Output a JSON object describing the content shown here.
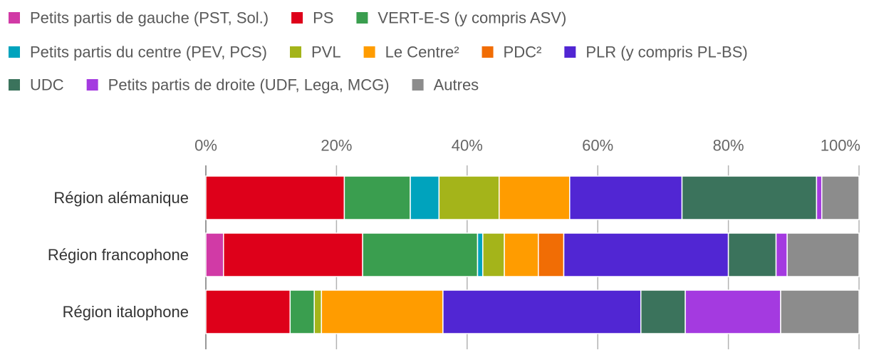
{
  "chart_data": {
    "type": "bar",
    "orientation": "horizontal",
    "stacked": true,
    "normalized": true,
    "xlim": [
      0,
      100
    ],
    "ticks": [
      0,
      20,
      40,
      60,
      80,
      100
    ],
    "tick_labels": [
      "0%",
      "20%",
      "40%",
      "60%",
      "80%",
      "100%"
    ],
    "categories": [
      "Région alémanique",
      "Région francophone",
      "Région italophone"
    ],
    "series": [
      {
        "name": "Petits partis de gauche (PST, Sol.)",
        "color": "#d13aa6",
        "values": [
          0,
          2.7,
          0
        ]
      },
      {
        "name": "PS",
        "color": "#de001a",
        "values": [
          21.2,
          21.3,
          12.9
        ]
      },
      {
        "name": "VERT-E-S (y compris ASV)",
        "color": "#3a9e4f",
        "values": [
          10.1,
          17.6,
          3.7
        ]
      },
      {
        "name": "Petits partis du centre (PEV, PCS)",
        "color": "#00a3bd",
        "values": [
          4.4,
          0.8,
          0
        ]
      },
      {
        "name": "PVL",
        "color": "#a4b41a",
        "values": [
          9.2,
          3.3,
          1.1
        ]
      },
      {
        "name": "Le Centre²",
        "color": "#ff9c00",
        "values": [
          10.8,
          5.2,
          18.6
        ]
      },
      {
        "name": "PDC²",
        "color": "#f16d05",
        "values": [
          0,
          3.9,
          0
        ]
      },
      {
        "name": "PLR (y compris PL-BS)",
        "color": "#5126d3",
        "values": [
          17.2,
          25.2,
          30.3
        ]
      },
      {
        "name": "UDC",
        "color": "#3b735c",
        "values": [
          20.6,
          7.3,
          6.8
        ]
      },
      {
        "name": "Petits partis de droite (UDF, Lega, MCG)",
        "color": "#a43ae0",
        "values": [
          0.8,
          1.7,
          14.6
        ]
      },
      {
        "name": "Autres",
        "color": "#8c8c8c",
        "values": [
          5.7,
          11.0,
          12.0
        ]
      }
    ],
    "legend_layout": [
      [
        0,
        1,
        2
      ],
      [
        3,
        4,
        5,
        6,
        7
      ],
      [
        8,
        9,
        10
      ]
    ],
    "legend_position": "top",
    "grid": false
  }
}
